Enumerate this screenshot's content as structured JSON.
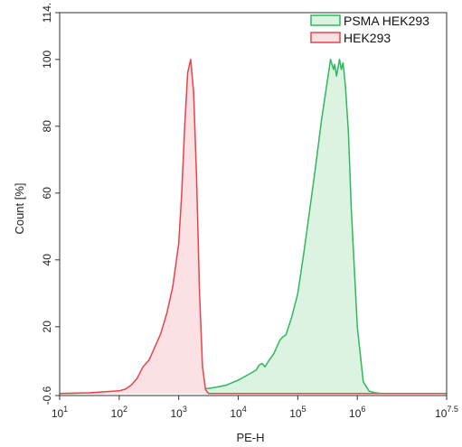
{
  "chart_data": {
    "type": "area",
    "xlabel": "PE-H",
    "ylabel": "Count [%]",
    "x_scale": "log10",
    "xlim_log10": [
      1,
      7.5
    ],
    "ylim": [
      -0.6,
      114
    ],
    "x_ticks": [
      {
        "base": "10",
        "exp": "1"
      },
      {
        "base": "10",
        "exp": "2"
      },
      {
        "base": "10",
        "exp": "3"
      },
      {
        "base": "10",
        "exp": "4"
      },
      {
        "base": "10",
        "exp": "5"
      },
      {
        "base": "10",
        "exp": "6"
      },
      {
        "base": "10",
        "exp": "7.5"
      }
    ],
    "y_ticks": [
      "-0.6",
      "20",
      "40",
      "60",
      "80",
      "100",
      "114."
    ],
    "legend_position": "top-right",
    "series": [
      {
        "name": "PSMA HEK293",
        "color": "#2eb85c",
        "fill": "#ddf3e2",
        "log10_x": [
          1.0,
          2.0,
          2.5,
          3.0,
          3.4,
          3.6,
          3.8,
          4.0,
          4.1,
          4.2,
          4.3,
          4.35,
          4.4,
          4.45,
          4.5,
          4.6,
          4.7,
          4.75,
          4.8,
          4.9,
          5.0,
          5.1,
          5.2,
          5.3,
          5.4,
          5.5,
          5.55,
          5.6,
          5.62,
          5.65,
          5.7,
          5.73,
          5.76,
          5.8,
          5.85,
          5.9,
          6.0,
          6.1,
          6.2,
          6.3,
          6.4,
          6.5,
          7.5
        ],
        "y": [
          0,
          0.3,
          0.6,
          0.8,
          1.3,
          1.8,
          2.5,
          4,
          5,
          6,
          7,
          8.5,
          9,
          8,
          9.5,
          12,
          16,
          17,
          17.5,
          23,
          30,
          42,
          55,
          68,
          82,
          94,
          100,
          97,
          98.5,
          95,
          100,
          97,
          99,
          92,
          78,
          55,
          20,
          3.5,
          0.7,
          0.2,
          0,
          0,
          0
        ]
      },
      {
        "name": "HEK293",
        "color": "#e8434b",
        "fill": "#fbe1e3",
        "log10_x": [
          1.0,
          1.5,
          2.0,
          2.1,
          2.2,
          2.3,
          2.4,
          2.5,
          2.6,
          2.7,
          2.8,
          2.9,
          3.0,
          3.05,
          3.1,
          3.15,
          3.2,
          3.25,
          3.3,
          3.35,
          3.4,
          3.45,
          3.5,
          7.5
        ],
        "y": [
          0,
          0.2,
          0.8,
          1.3,
          2.5,
          4.5,
          8,
          10,
          14,
          18,
          24,
          32,
          45,
          60,
          80,
          96,
          100,
          90,
          65,
          30,
          8,
          1.2,
          0,
          0
        ]
      }
    ]
  }
}
